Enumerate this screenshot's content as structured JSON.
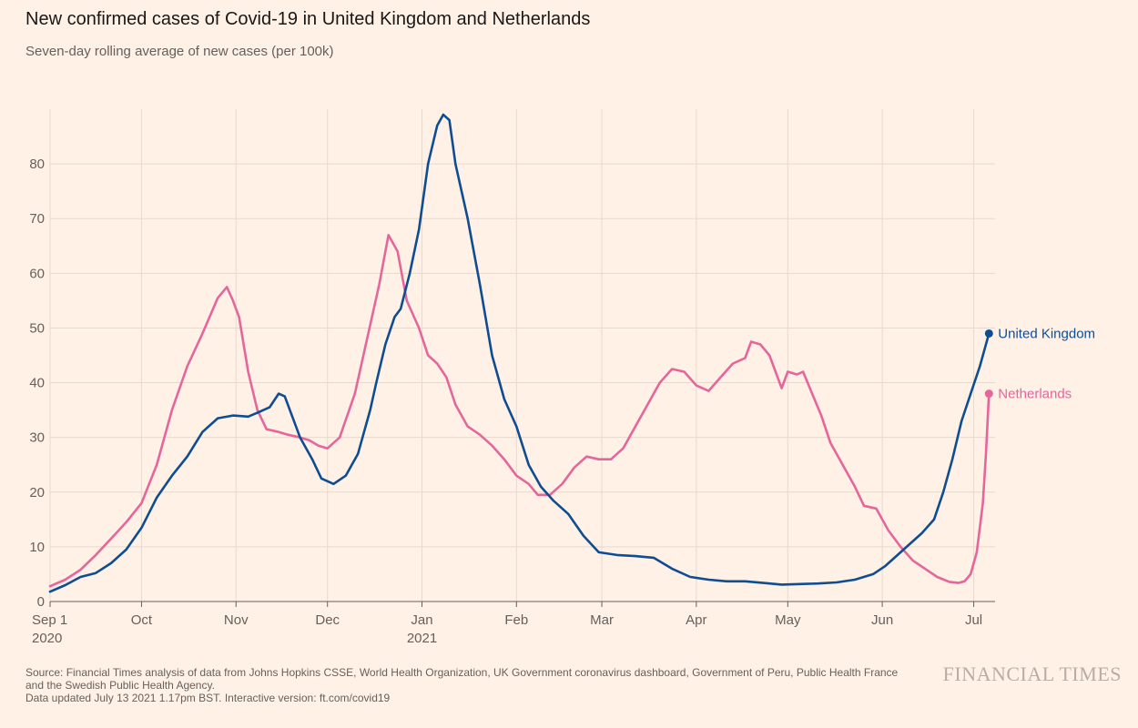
{
  "chart_data": {
    "type": "line",
    "title": "New confirmed cases of Covid-19 in United Kingdom and Netherlands",
    "subtitle": "Seven-day rolling average of new cases (per 100k)",
    "ylim": [
      0,
      90
    ],
    "y_ticks": [
      0,
      10,
      20,
      30,
      40,
      50,
      60,
      70,
      80
    ],
    "x_ticks": [
      {
        "day": 0,
        "label": "Sep 1",
        "sublabel": "2020"
      },
      {
        "day": 30,
        "label": "Oct",
        "sublabel": ""
      },
      {
        "day": 61,
        "label": "Nov",
        "sublabel": ""
      },
      {
        "day": 91,
        "label": "Dec",
        "sublabel": ""
      },
      {
        "day": 122,
        "label": "Jan",
        "sublabel": "2021"
      },
      {
        "day": 153,
        "label": "Feb",
        "sublabel": ""
      },
      {
        "day": 181,
        "label": "Mar",
        "sublabel": ""
      },
      {
        "day": 212,
        "label": "Apr",
        "sublabel": ""
      },
      {
        "day": 242,
        "label": "May",
        "sublabel": ""
      },
      {
        "day": 273,
        "label": "Jun",
        "sublabel": ""
      },
      {
        "day": 303,
        "label": "Jul",
        "sublabel": ""
      }
    ],
    "xlim": [
      0,
      310
    ],
    "grid": true,
    "series": [
      {
        "name": "United Kingdom",
        "color": "#0f4d92",
        "points": [
          [
            0,
            1.8
          ],
          [
            5,
            3
          ],
          [
            10,
            4.5
          ],
          [
            15,
            5.2
          ],
          [
            20,
            7
          ],
          [
            25,
            9.5
          ],
          [
            30,
            13.5
          ],
          [
            35,
            19
          ],
          [
            40,
            23
          ],
          [
            45,
            26.5
          ],
          [
            50,
            31
          ],
          [
            55,
            33.5
          ],
          [
            60,
            34
          ],
          [
            65,
            33.8
          ],
          [
            68,
            34.5
          ],
          [
            72,
            35.5
          ],
          [
            75,
            38
          ],
          [
            77,
            37.5
          ],
          [
            79,
            34.5
          ],
          [
            82,
            30
          ],
          [
            86,
            26
          ],
          [
            89,
            22.5
          ],
          [
            93,
            21.5
          ],
          [
            97,
            23
          ],
          [
            101,
            27
          ],
          [
            105,
            35
          ],
          [
            107,
            40
          ],
          [
            110,
            47
          ],
          [
            113,
            52
          ],
          [
            115,
            53.5
          ],
          [
            118,
            60
          ],
          [
            121,
            68
          ],
          [
            124,
            80
          ],
          [
            127,
            87
          ],
          [
            129,
            89
          ],
          [
            131,
            88
          ],
          [
            133,
            80
          ],
          [
            137,
            70
          ],
          [
            141,
            58
          ],
          [
            145,
            45
          ],
          [
            149,
            37
          ],
          [
            153,
            32
          ],
          [
            157,
            25
          ],
          [
            161,
            21
          ],
          [
            165,
            18.5
          ],
          [
            170,
            16
          ],
          [
            175,
            12
          ],
          [
            180,
            9
          ],
          [
            186,
            8.5
          ],
          [
            192,
            8.3
          ],
          [
            198,
            8
          ],
          [
            204,
            6
          ],
          [
            210,
            4.5
          ],
          [
            216,
            4
          ],
          [
            222,
            3.7
          ],
          [
            228,
            3.7
          ],
          [
            234,
            3.4
          ],
          [
            240,
            3.1
          ],
          [
            246,
            3.2
          ],
          [
            252,
            3.3
          ],
          [
            258,
            3.5
          ],
          [
            264,
            4
          ],
          [
            270,
            5
          ],
          [
            274,
            6.5
          ],
          [
            278,
            8.5
          ],
          [
            282,
            10.5
          ],
          [
            286,
            12.5
          ],
          [
            290,
            15
          ],
          [
            293,
            20
          ],
          [
            296,
            26
          ],
          [
            299,
            33
          ],
          [
            302,
            38
          ],
          [
            305,
            43
          ],
          [
            308,
            49
          ]
        ]
      },
      {
        "name": "Netherlands",
        "color": "#e5669a",
        "points": [
          [
            0,
            2.8
          ],
          [
            5,
            4
          ],
          [
            10,
            5.8
          ],
          [
            15,
            8.5
          ],
          [
            20,
            11.5
          ],
          [
            25,
            14.5
          ],
          [
            30,
            18
          ],
          [
            35,
            25
          ],
          [
            40,
            35
          ],
          [
            45,
            43
          ],
          [
            50,
            49
          ],
          [
            55,
            55.5
          ],
          [
            58,
            57.5
          ],
          [
            60,
            55
          ],
          [
            62,
            52
          ],
          [
            65,
            42
          ],
          [
            68,
            35
          ],
          [
            71,
            31.5
          ],
          [
            75,
            31
          ],
          [
            78,
            30.5
          ],
          [
            82,
            30
          ],
          [
            85,
            29.5
          ],
          [
            88,
            28.5
          ],
          [
            91,
            28
          ],
          [
            95,
            30
          ],
          [
            100,
            38
          ],
          [
            104,
            48
          ],
          [
            108,
            58
          ],
          [
            111,
            67
          ],
          [
            114,
            64
          ],
          [
            117,
            55
          ],
          [
            121,
            50
          ],
          [
            124,
            45
          ],
          [
            127,
            43.5
          ],
          [
            130,
            41
          ],
          [
            133,
            36
          ],
          [
            137,
            32
          ],
          [
            141,
            30.5
          ],
          [
            145,
            28.5
          ],
          [
            149,
            26
          ],
          [
            153,
            23
          ],
          [
            157,
            21.5
          ],
          [
            160,
            19.5
          ],
          [
            164,
            19.5
          ],
          [
            168,
            21.5
          ],
          [
            172,
            24.5
          ],
          [
            176,
            26.5
          ],
          [
            180,
            26
          ],
          [
            184,
            26
          ],
          [
            188,
            28
          ],
          [
            192,
            32
          ],
          [
            196,
            36
          ],
          [
            200,
            40
          ],
          [
            204,
            42.5
          ],
          [
            208,
            42
          ],
          [
            212,
            39.5
          ],
          [
            216,
            38.5
          ],
          [
            220,
            41
          ],
          [
            224,
            43.5
          ],
          [
            228,
            44.5
          ],
          [
            230,
            47.5
          ],
          [
            233,
            47
          ],
          [
            236,
            45
          ],
          [
            240,
            39
          ],
          [
            242,
            42
          ],
          [
            245,
            41.5
          ],
          [
            247,
            42
          ],
          [
            250,
            38
          ],
          [
            253,
            34
          ],
          [
            256,
            29
          ],
          [
            260,
            25
          ],
          [
            264,
            21
          ],
          [
            267,
            17.5
          ],
          [
            271,
            17
          ],
          [
            275,
            13
          ],
          [
            279,
            10
          ],
          [
            283,
            7.5
          ],
          [
            287,
            6
          ],
          [
            291,
            4.5
          ],
          [
            295,
            3.6
          ],
          [
            298,
            3.4
          ],
          [
            300,
            3.7
          ],
          [
            302,
            5
          ],
          [
            304,
            9
          ],
          [
            306,
            18
          ],
          [
            307,
            27
          ],
          [
            308,
            38
          ]
        ]
      }
    ]
  },
  "footer": {
    "source_line1": "Source: Financial Times analysis of data from Johns Hopkins CSSE, World Health Organization, UK Government coronavirus dashboard, Government of Peru, Public Health France",
    "source_line2": "and the Swedish Public Health Agency.",
    "updated": "Data updated July 13 2021 1.17pm BST. Interactive version: ft.com/covid19"
  },
  "brand": {
    "logo": "FINANCIAL TIMES"
  }
}
